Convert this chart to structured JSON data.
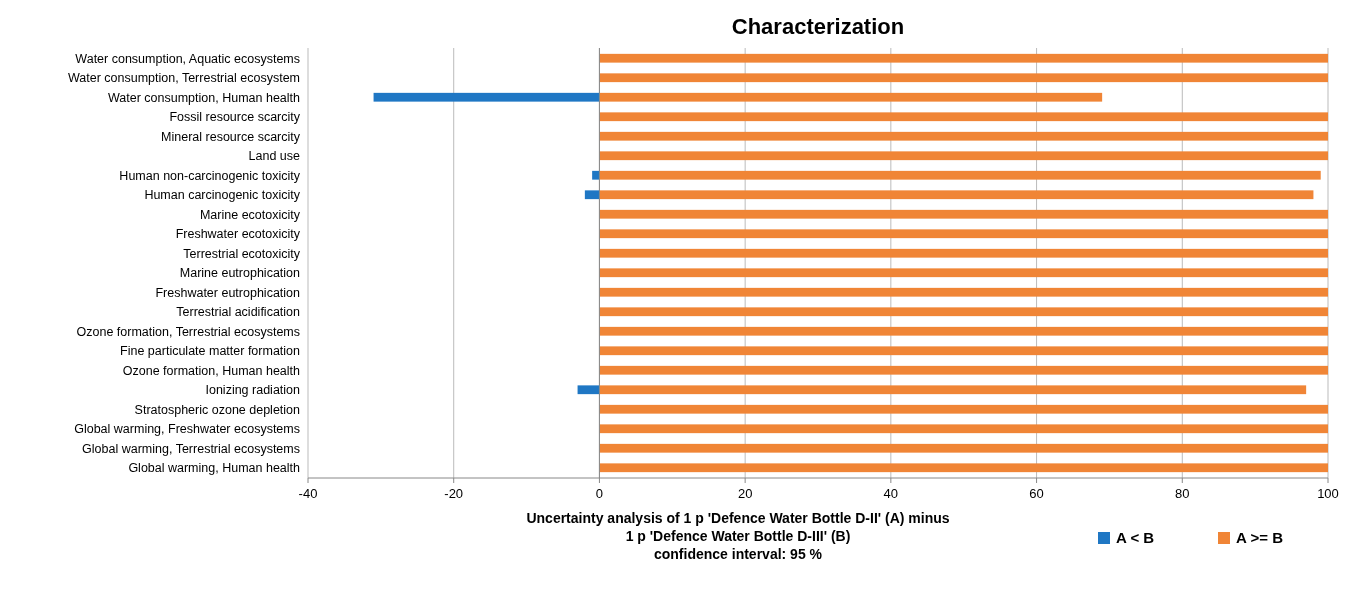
{
  "chart_data": {
    "type": "bar",
    "orientation": "horizontal",
    "stacked": true,
    "title": "Characterization",
    "xlabel": "Uncertainty analysis of 1 p 'Defence Water Bottle D-II' (A) minus\n1 p 'Defence Water Bottle D-III' (B)\nconfidence interval: 95 %",
    "categories": [
      "Water consumption, Aquatic ecosystems",
      "Water consumption, Terrestrial ecosystem",
      "Water consumption, Human health",
      "Fossil resource scarcity",
      "Mineral resource scarcity",
      "Land use",
      "Human non-carcinogenic toxicity",
      "Human carcinogenic toxicity",
      "Marine ecotoxicity",
      "Freshwater ecotoxicity",
      "Terrestrial ecotoxicity",
      "Marine eutrophication",
      "Freshwater eutrophication",
      "Terrestrial acidification",
      "Ozone formation, Terrestrial ecosystems",
      "Fine particulate matter formation",
      "Ozone formation, Human health",
      "Ionizing radiation",
      "Stratospheric ozone depletion",
      "Global warming, Freshwater ecosystems",
      "Global warming, Terrestrial ecosystems",
      "Global warming, Human health"
    ],
    "series": [
      {
        "name": "A < B",
        "color": "#1f77c4",
        "values": [
          0,
          0,
          -31,
          0,
          0,
          0,
          -1,
          -2,
          0,
          0,
          0,
          0,
          0,
          0,
          0,
          0,
          0,
          -3,
          0,
          0,
          0,
          0
        ]
      },
      {
        "name": "A >= B",
        "color": "#f08536",
        "values": [
          100,
          100,
          69,
          100,
          100,
          100,
          99,
          98,
          100,
          100,
          100,
          100,
          100,
          100,
          100,
          100,
          100,
          97,
          100,
          100,
          100,
          100
        ]
      }
    ],
    "xlim": [
      -40,
      100
    ],
    "xticks": [
      -40,
      -20,
      0,
      20,
      40,
      60,
      80,
      100
    ],
    "grid": "x",
    "legend": "bottom right"
  }
}
